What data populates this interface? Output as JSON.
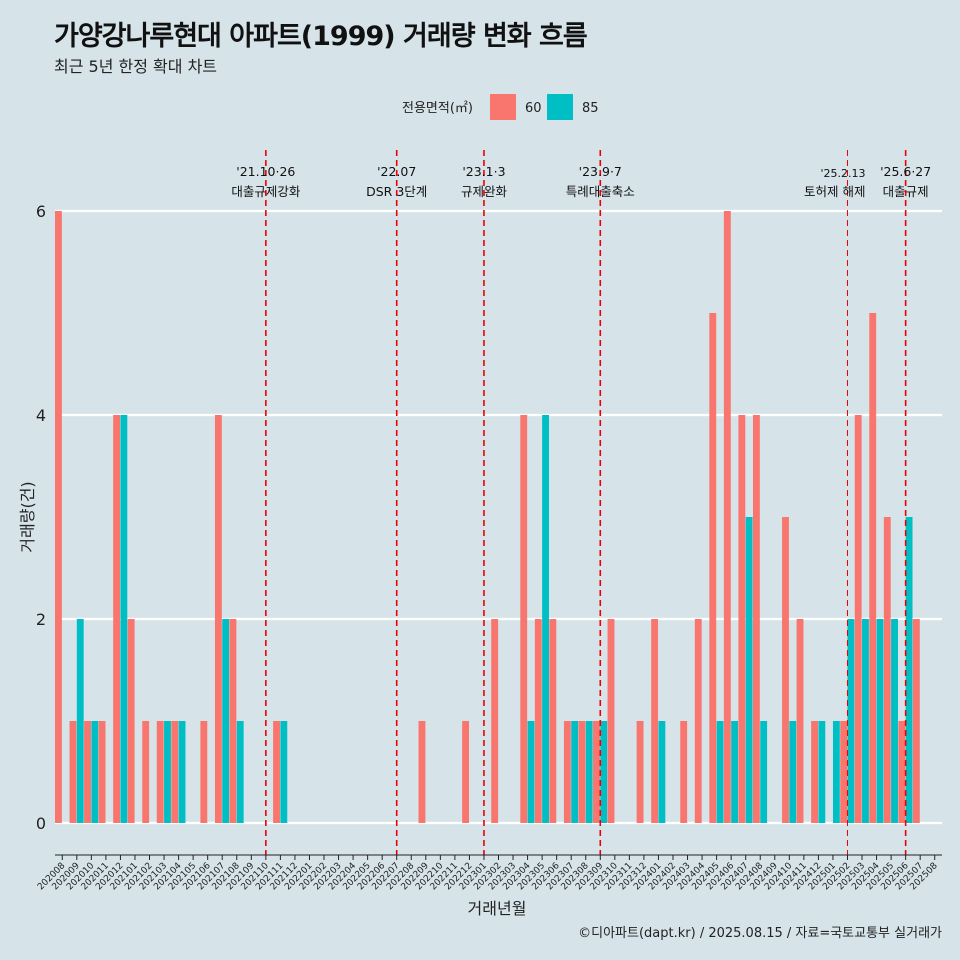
{
  "title": "가양강나루현대 아파트(1999) 거래량 변화 흐름",
  "subtitle": "최근 5년 한정 확대 차트",
  "caption": "©디아파트(dapt.kr) / 2025.08.15 / 자료=국토교통부 실거래가",
  "colors": {
    "background": "#d6e4ea",
    "s60": "#f8766d",
    "s85": "#00bfc4",
    "event": "#ee0000",
    "grid": "#ffffff"
  },
  "chart_data": {
    "type": "bar",
    "title": "가양강나루현대 아파트(1999) 거래량 변화 흐름",
    "xlabel": "거래년월",
    "ylabel": "거래량(건)",
    "ylim": [
      0,
      6
    ],
    "yticks": [
      0,
      2,
      4,
      6
    ],
    "legend": {
      "title": "전용면적(㎡)",
      "position": "top"
    },
    "categories": [
      "202008",
      "202009",
      "202010",
      "202011",
      "202012",
      "202101",
      "202102",
      "202103",
      "202104",
      "202105",
      "202106",
      "202107",
      "202108",
      "202109",
      "202110",
      "202111",
      "202112",
      "202201",
      "202202",
      "202203",
      "202204",
      "202205",
      "202206",
      "202207",
      "202208",
      "202209",
      "202210",
      "202211",
      "202212",
      "202301",
      "202302",
      "202303",
      "202304",
      "202305",
      "202306",
      "202307",
      "202308",
      "202309",
      "202310",
      "202311",
      "202312",
      "202401",
      "202402",
      "202403",
      "202404",
      "202405",
      "202406",
      "202407",
      "202408",
      "202409",
      "202410",
      "202411",
      "202412",
      "202501",
      "202502",
      "202503",
      "202504",
      "202505",
      "202506",
      "202507",
      "202508"
    ],
    "series": [
      {
        "name": "60",
        "values": [
          6,
          1,
          1,
          1,
          4,
          2,
          1,
          1,
          1,
          0,
          1,
          4,
          2,
          0,
          0,
          1,
          0,
          0,
          0,
          0,
          0,
          0,
          0,
          0,
          0,
          1,
          0,
          0,
          1,
          0,
          2,
          0,
          4,
          2,
          2,
          1,
          1,
          1,
          2,
          0,
          1,
          2,
          0,
          1,
          2,
          5,
          6,
          4,
          4,
          0,
          3,
          2,
          1,
          0,
          1,
          4,
          5,
          3,
          1,
          2,
          0
        ]
      },
      {
        "name": "85",
        "values": [
          0,
          2,
          1,
          0,
          4,
          0,
          0,
          1,
          1,
          0,
          0,
          2,
          1,
          0,
          0,
          1,
          0,
          0,
          0,
          0,
          0,
          0,
          0,
          0,
          0,
          0,
          0,
          0,
          0,
          0,
          0,
          0,
          1,
          4,
          0,
          1,
          1,
          1,
          0,
          0,
          0,
          1,
          0,
          0,
          0,
          1,
          1,
          3,
          1,
          0,
          1,
          0,
          1,
          1,
          2,
          2,
          2,
          2,
          3,
          0,
          0
        ]
      }
    ],
    "events": [
      {
        "date": "'21.10·26",
        "label": "대출규제강화",
        "month": "202110"
      },
      {
        "date": "'22.07",
        "label": "DSR 3단계",
        "month": "202207"
      },
      {
        "date": "'23.1·3",
        "label": "규제완화",
        "month": "202301"
      },
      {
        "date": "'23.9·7",
        "label": "특례대출축소",
        "month": "202309"
      },
      {
        "date": "'25.2.13",
        "label": "토허제 해제",
        "month": "202502"
      },
      {
        "date": "'25.6·27",
        "label": "대출규제",
        "month": "202506"
      }
    ]
  }
}
